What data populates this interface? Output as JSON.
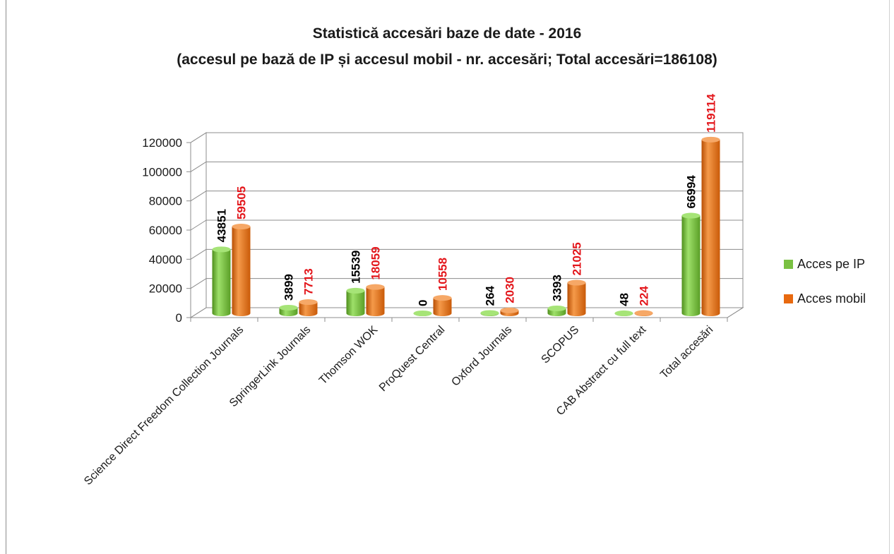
{
  "chart_data": {
    "type": "bar",
    "title": "Statistică accesări baze de date - 2016",
    "subtitle": "(accesul pe bază de IP și accesul mobil - nr. accesări; Total accesări=186108)",
    "categories": [
      "Science Direct Freedom Collection Journals",
      "SpringerLink Journals",
      "Thomson WOK",
      "ProQuest Central",
      "Oxford Journals",
      "SCOPUS",
      "CAB Abstract cu full text",
      "Total accesări"
    ],
    "series": [
      {
        "name": "Acces pe IP",
        "color": "#7ac142",
        "label_color": "#000000",
        "values": [
          43851,
          3899,
          15539,
          0,
          264,
          3393,
          48,
          66994
        ]
      },
      {
        "name": "Acces mobil",
        "color": "#e8690f",
        "label_color": "#e3161b",
        "values": [
          59505,
          7713,
          18059,
          10558,
          2030,
          21025,
          224,
          119114
        ]
      }
    ],
    "yticks": [
      0,
      20000,
      40000,
      60000,
      80000,
      100000,
      120000
    ],
    "ylim": [
      0,
      120000
    ],
    "grid": true,
    "legend_position": "right",
    "style": "3d-cylinder-columns"
  },
  "legend": {
    "items": [
      {
        "label": "Acces pe IP",
        "color": "#7ac142"
      },
      {
        "label": "Acces mobil",
        "color": "#e8690f"
      }
    ]
  }
}
